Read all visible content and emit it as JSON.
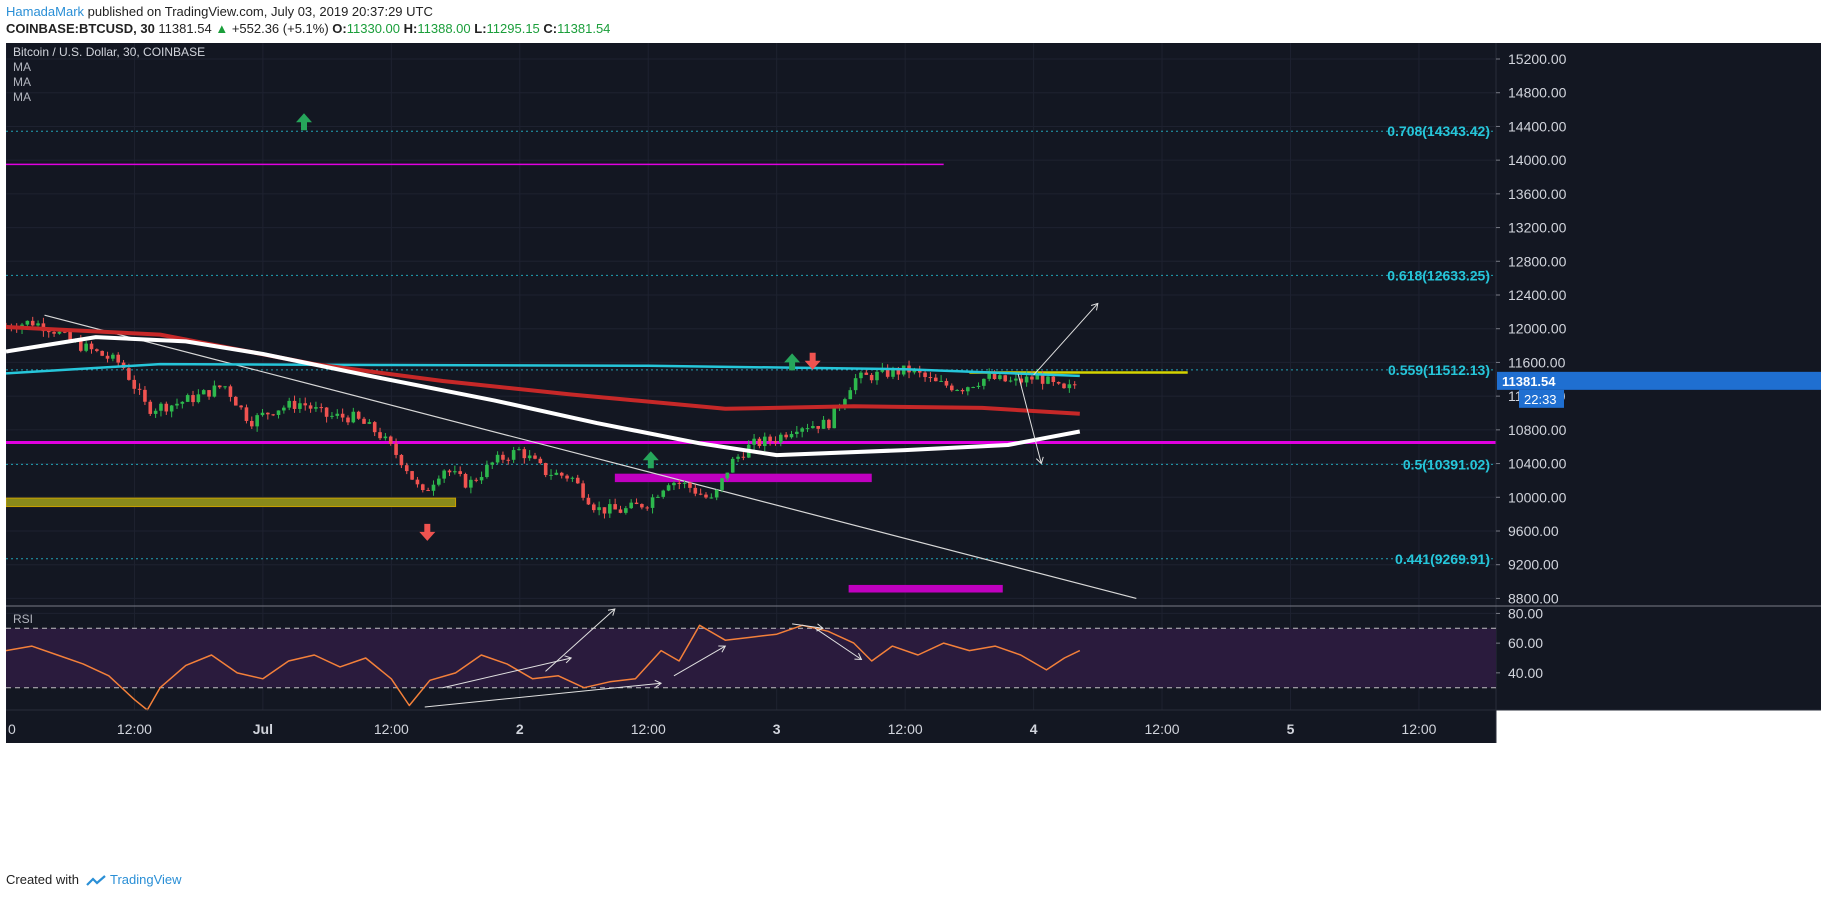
{
  "header": {
    "author": "HamadaMark",
    "published": "published on TradingView.com, July 03, 2019 20:37:29 UTC",
    "symbol": "COINBASE:BTCUSD, 30",
    "last": "11381.54",
    "change_arrow": "▲",
    "change": "+552.36 (+5.1%)",
    "o_label": "O:",
    "o_value": "11330.00",
    "h_label": "H:",
    "h_value": "11388.00",
    "l_label": "L:",
    "l_value": "11295.15",
    "c_label": "C:",
    "c_value": "11381.54"
  },
  "footer": {
    "created_with": "Created with",
    "brand": "TradingView",
    "icon": "tradingview-logo-icon"
  },
  "colors": {
    "background": "#131722",
    "grid": "#1e2230",
    "up": "#26a69a",
    "green_candle": "#2db84d",
    "down": "#ef5350",
    "ma_cyan": "#26c6da",
    "ma_red": "#c62828",
    "ma_white": "#ffffff",
    "magenta": "#e000e0",
    "yellow": "#d4d400",
    "olive": "#8a8a1a",
    "fib": "#26c6da",
    "rsi_line": "#f4803a",
    "rsi_band": "#2a1b3d",
    "text": "#b2b5be"
  },
  "chart_data": {
    "type": "candlestick",
    "title": "Bitcoin / U.S. Dollar, 30, COINBASE",
    "indicators": [
      "MA",
      "MA",
      "MA"
    ],
    "price_axis": {
      "ticks": [
        15200,
        14800,
        14400,
        14000,
        13600,
        13200,
        12800,
        12400,
        12000,
        11600,
        11200,
        10800,
        10400,
        10000,
        9600,
        9200,
        8800
      ],
      "tick_labels": [
        "15200.00",
        "14800.00",
        "14400.00",
        "14000.00",
        "13600.00",
        "13200.00",
        "12800.00",
        "12400.00",
        "12000.00",
        "11600.00",
        "11200.00",
        "10800.00",
        "10400.00",
        "10000.00",
        "9600.00",
        "9200.00",
        "8800.00"
      ],
      "range": [
        8710,
        15390
      ],
      "current_price_label": "11381.54",
      "countdown_label": "22:33"
    },
    "time_axis": {
      "labels": [
        "0",
        "12:00",
        "Jul",
        "12:00",
        "2",
        "12:00",
        "3",
        "12:00",
        "4",
        "12:00",
        "5",
        "12:00"
      ],
      "day_span": [
        0,
        5.8
      ]
    },
    "fib_levels": [
      {
        "label": "0.708(14343.42)",
        "value": 14343.42
      },
      {
        "label": "0.618(12633.25)",
        "value": 12633.25
      },
      {
        "label": "0.559(11512.13)",
        "value": 11512.13
      },
      {
        "label": "0.5(10391.02)",
        "value": 10391.02
      },
      {
        "label": "0.441(9269.91)",
        "value": 9269.91
      }
    ],
    "close_path": [
      [
        0.0,
        12030
      ],
      [
        0.1,
        12080
      ],
      [
        0.18,
        12000
      ],
      [
        0.25,
        11850
      ],
      [
        0.35,
        11720
      ],
      [
        0.45,
        11580
      ],
      [
        0.55,
        11050
      ],
      [
        0.65,
        11100
      ],
      [
        0.75,
        11200
      ],
      [
        0.85,
        11330
      ],
      [
        0.95,
        10900
      ],
      [
        1.05,
        11050
      ],
      [
        1.15,
        11120
      ],
      [
        1.25,
        10960
      ],
      [
        1.35,
        10950
      ],
      [
        1.45,
        10760
      ],
      [
        1.55,
        10400
      ],
      [
        1.62,
        10020
      ],
      [
        1.7,
        10350
      ],
      [
        1.8,
        10150
      ],
      [
        1.9,
        10420
      ],
      [
        2.0,
        10560
      ],
      [
        2.1,
        10300
      ],
      [
        2.2,
        10240
      ],
      [
        2.3,
        9860
      ],
      [
        2.4,
        9840
      ],
      [
        2.5,
        9940
      ],
      [
        2.58,
        10200
      ],
      [
        2.65,
        10140
      ],
      [
        2.75,
        9950
      ],
      [
        2.82,
        10400
      ],
      [
        2.9,
        10620
      ],
      [
        3.0,
        10700
      ],
      [
        3.08,
        10850
      ],
      [
        3.2,
        10870
      ],
      [
        3.3,
        11400
      ],
      [
        3.42,
        11470
      ],
      [
        3.52,
        11510
      ],
      [
        3.62,
        11350
      ],
      [
        3.72,
        11300
      ],
      [
        3.82,
        11420
      ],
      [
        3.92,
        11360
      ],
      [
        4.02,
        11430
      ],
      [
        4.12,
        11250
      ],
      [
        4.18,
        11381.54
      ]
    ],
    "moving_averages": [
      {
        "color": "cyan",
        "points": [
          [
            0.0,
            11470
          ],
          [
            0.6,
            11580
          ],
          [
            1.5,
            11570
          ],
          [
            2.5,
            11560
          ],
          [
            3.5,
            11520
          ],
          [
            4.18,
            11440
          ]
        ]
      },
      {
        "color": "red",
        "points": [
          [
            0.0,
            12020
          ],
          [
            0.6,
            11930
          ],
          [
            1.2,
            11580
          ],
          [
            1.7,
            11380
          ],
          [
            2.2,
            11220
          ],
          [
            2.8,
            11050
          ],
          [
            3.3,
            11080
          ],
          [
            3.8,
            11060
          ],
          [
            4.18,
            10990
          ]
        ]
      },
      {
        "color": "white",
        "points": [
          [
            0.0,
            11730
          ],
          [
            0.35,
            11900
          ],
          [
            0.7,
            11850
          ],
          [
            1.0,
            11700
          ],
          [
            1.4,
            11450
          ],
          [
            1.9,
            11150
          ],
          [
            2.3,
            10880
          ],
          [
            2.7,
            10640
          ],
          [
            3.0,
            10500
          ],
          [
            3.5,
            10560
          ],
          [
            3.9,
            10620
          ],
          [
            4.18,
            10780
          ]
        ]
      }
    ],
    "drawings": {
      "magenta_lines": [
        {
          "y": 13950,
          "x0": 0.0,
          "x1": 3.65
        },
        {
          "y": 10650,
          "x0": 0.0,
          "x1": 5.8
        }
      ],
      "yellow_line": {
        "y": 11480,
        "x0": 3.75,
        "x1": 4.6
      },
      "olive_zone": {
        "y0": 9890,
        "y1": 9990,
        "x0": 0.0,
        "x1": 1.75
      },
      "magenta_zones": [
        {
          "y0": 10180,
          "y1": 10280,
          "x0": 2.37,
          "x1": 3.37
        },
        {
          "y0": 8870,
          "y1": 8960,
          "x0": 3.28,
          "x1": 3.88
        }
      ],
      "trendline": [
        [
          0.15,
          12160
        ],
        [
          4.4,
          8800
        ]
      ],
      "arrows_up": [
        [
          1.16,
          14450
        ],
        [
          2.51,
          10440
        ],
        [
          3.06,
          11600
        ]
      ],
      "arrows_down": [
        [
          1.64,
          9590
        ],
        [
          3.14,
          11620
        ]
      ],
      "projection_arrows": [
        [
          [
            4.0,
            11450
          ],
          [
            4.25,
            12300
          ]
        ],
        [
          [
            3.94,
            11460
          ],
          [
            4.03,
            10400
          ]
        ]
      ]
    },
    "rsi": {
      "label": "RSI",
      "ticks": [
        80,
        60,
        40
      ],
      "tick_labels": [
        "80.00",
        "60.00",
        "40.00"
      ],
      "band": [
        30,
        70
      ],
      "range": [
        15,
        85
      ],
      "values": [
        [
          0.0,
          55
        ],
        [
          0.1,
          58
        ],
        [
          0.2,
          52
        ],
        [
          0.3,
          46
        ],
        [
          0.4,
          38
        ],
        [
          0.5,
          22
        ],
        [
          0.55,
          15
        ],
        [
          0.6,
          30
        ],
        [
          0.7,
          45
        ],
        [
          0.8,
          52
        ],
        [
          0.9,
          40
        ],
        [
          1.0,
          36
        ],
        [
          1.1,
          48
        ],
        [
          1.2,
          52
        ],
        [
          1.3,
          44
        ],
        [
          1.4,
          50
        ],
        [
          1.5,
          36
        ],
        [
          1.57,
          18
        ],
        [
          1.65,
          35
        ],
        [
          1.75,
          40
        ],
        [
          1.85,
          52
        ],
        [
          1.95,
          46
        ],
        [
          2.05,
          36
        ],
        [
          2.15,
          38
        ],
        [
          2.25,
          30
        ],
        [
          2.35,
          34
        ],
        [
          2.45,
          36
        ],
        [
          2.55,
          55
        ],
        [
          2.62,
          48
        ],
        [
          2.7,
          72
        ],
        [
          2.8,
          62
        ],
        [
          2.9,
          64
        ],
        [
          3.0,
          66
        ],
        [
          3.1,
          72
        ],
        [
          3.2,
          68
        ],
        [
          3.3,
          60
        ],
        [
          3.37,
          48
        ],
        [
          3.45,
          58
        ],
        [
          3.55,
          52
        ],
        [
          3.65,
          60
        ],
        [
          3.75,
          55
        ],
        [
          3.85,
          58
        ],
        [
          3.95,
          52
        ],
        [
          4.05,
          42
        ],
        [
          4.12,
          50
        ],
        [
          4.18,
          55
        ]
      ],
      "drawings": [
        [
          [
            1.7,
            30
          ],
          [
            2.2,
            50
          ]
        ],
        [
          [
            2.1,
            41
          ],
          [
            2.37,
            83
          ]
        ],
        [
          [
            2.6,
            38
          ],
          [
            2.8,
            58
          ]
        ],
        [
          [
            3.06,
            73
          ],
          [
            3.18,
            70
          ]
        ],
        [
          [
            3.15,
            70
          ],
          [
            3.33,
            49
          ]
        ],
        [
          [
            1.63,
            17
          ],
          [
            2.55,
            33
          ]
        ]
      ]
    }
  }
}
